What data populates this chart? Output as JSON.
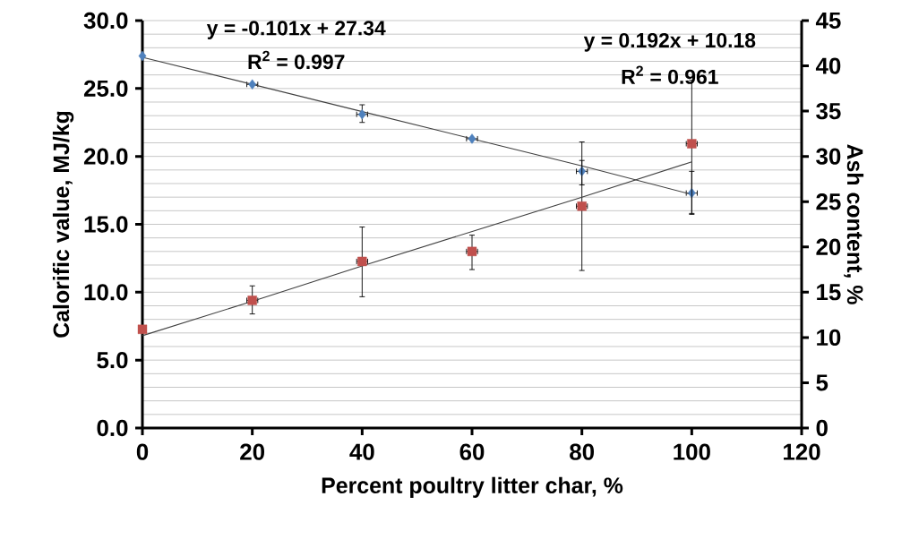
{
  "chart_data": {
    "type": "scatter",
    "x": [
      0,
      20,
      40,
      60,
      80,
      100
    ],
    "xlim": [
      0,
      120
    ],
    "xticks": [
      0,
      20,
      40,
      60,
      80,
      100,
      120
    ],
    "ylim": [
      0,
      30
    ],
    "yticks": [
      {
        "value": 0,
        "label": "0.0"
      },
      {
        "value": 5,
        "label": "5.0"
      },
      {
        "value": 10,
        "label": "10.0"
      },
      {
        "value": 15,
        "label": "15.0"
      },
      {
        "value": 20,
        "label": "20.0"
      },
      {
        "value": 25,
        "label": "25.0"
      },
      {
        "value": 30,
        "label": "30.0"
      }
    ],
    "y2lim": [
      0,
      45
    ],
    "y2ticks": [
      0,
      5,
      10,
      15,
      20,
      25,
      30,
      35,
      40,
      45
    ],
    "xlabel": "Percent poultry litter char, %",
    "ylabel": "Calorific value, MJ/kg",
    "y2label": "Ash content, %",
    "grid": "y",
    "annotations": [
      "y = -0.101x + 27.34",
      "R$^{2}$ = 0.997",
      "y = 0.192x + 10.18",
      "R$^{2}$ = 0.961"
    ],
    "series": [
      {
        "marker": "diamond",
        "color": "#4f81bd",
        "values": [
          27.4,
          25.3,
          23.1,
          21.3,
          18.9,
          17.3
        ],
        "errors": [
          null,
          null,
          [
            22.5,
            23.8
          ],
          null,
          [
            17.9,
            19.7
          ],
          [
            15.8,
            18.9
          ]
        ],
        "xerrors": [
          null,
          1,
          1,
          1,
          1,
          1
        ]
      },
      {
        "marker": "square",
        "axis": "y2",
        "color": "#c0504d",
        "values": [
          10.9,
          14.1,
          18.4,
          19.5,
          24.5,
          31.4
        ],
        "errors": [
          null,
          [
            12.6,
            15.7
          ],
          [
            14.5,
            22.2
          ],
          [
            17.5,
            21.3
          ],
          [
            17.4,
            31.6
          ],
          [
            23.6,
            38.4
          ]
        ],
        "xerrors": [
          null,
          1,
          1,
          1,
          1,
          1
        ]
      },
      {
        "type": "line",
        "color": "#404040",
        "values": [
          27.3,
          25.3,
          23.3,
          21.3,
          19.3,
          17.2
        ]
      },
      {
        "type": "line",
        "axis": "y2",
        "color": "#404040",
        "values": [
          10.2,
          14.0,
          17.9,
          21.7,
          25.5,
          29.4
        ]
      }
    ]
  }
}
